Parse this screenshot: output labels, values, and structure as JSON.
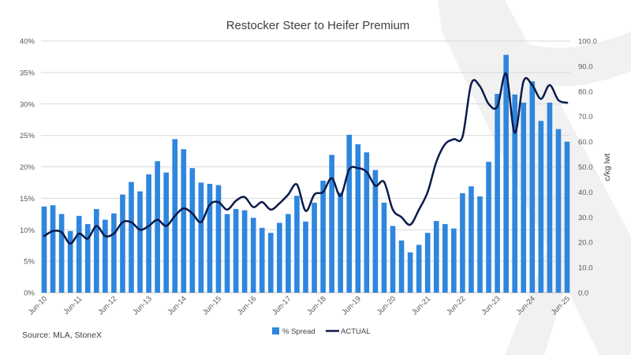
{
  "chart_data": {
    "type": "bar",
    "title": "Restocker Steer to Heifer Premium",
    "source": "Source:  MLA, StoneX",
    "y_left": {
      "ticks": [
        "0%",
        "5%",
        "10%",
        "15%",
        "20%",
        "25%",
        "30%",
        "35%",
        "40%"
      ],
      "range": [
        0,
        40
      ]
    },
    "y_right": {
      "label": "c/kg lwt",
      "ticks": [
        "0.0",
        "10.0",
        "20.0",
        "30.0",
        "40.0",
        "50.0",
        "60.0",
        "70.0",
        "80.0",
        "90.0",
        "100.0"
      ],
      "range": [
        0,
        100
      ]
    },
    "x_ticks": [
      "Jun-10",
      "Jun-11",
      "Jun-12",
      "Jun-13",
      "Jun-14",
      "Jun-15",
      "Jun-16",
      "Jun-17",
      "Jun-18",
      "Jun-19",
      "Jun-20",
      "Jun-21",
      "Jun-22",
      "Jun-23",
      "Jun-24",
      "Jun-25"
    ],
    "period_count": 60,
    "legend": [
      "% Spread",
      "ACTUAL"
    ],
    "series": [
      {
        "name": "% Spread",
        "type": "bar",
        "axis": "left",
        "color": "#2E86DE",
        "values": [
          13.7,
          13.9,
          12.5,
          9.8,
          12.2,
          10.9,
          13.3,
          11.6,
          12.6,
          15.6,
          17.6,
          16.1,
          18.8,
          20.9,
          19.1,
          24.4,
          22.8,
          19.8,
          17.5,
          17.3,
          17.1,
          12.5,
          13.3,
          13.1,
          11.9,
          10.3,
          9.5,
          11.1,
          12.5,
          15.4,
          11.3,
          14.3,
          17.8,
          21.9,
          15.9,
          25.1,
          23.6,
          22.3,
          19.5,
          14.3,
          10.6,
          8.3,
          6.4,
          7.6,
          9.5,
          11.4,
          10.9,
          10.2,
          15.8,
          16.9,
          15.3,
          20.8,
          31.6,
          37.8,
          31.5,
          30.2,
          33.6,
          27.3,
          30.2,
          26.0,
          24.0
        ]
      },
      {
        "name": "ACTUAL",
        "type": "line",
        "axis": "right",
        "color": "#0B1A4A",
        "values": [
          22.5,
          24.5,
          24.0,
          19.5,
          23.5,
          21.5,
          26.5,
          22.5,
          23.5,
          28.0,
          28.0,
          25.0,
          26.5,
          29.0,
          26.5,
          30.5,
          33.5,
          31.5,
          28.0,
          35.0,
          36.0,
          33.0,
          36.5,
          38.0,
          34.0,
          36.0,
          33.0,
          35.5,
          39.0,
          43.0,
          32.5,
          39.0,
          40.0,
          45.5,
          38.5,
          49.0,
          49.5,
          48.0,
          42.5,
          44.0,
          33.0,
          30.0,
          27.0,
          33.0,
          40.0,
          52.0,
          59.0,
          61.0,
          62.0,
          83.0,
          82.0,
          75.0,
          74.0,
          87.0,
          63.5,
          84.0,
          82.5,
          77.0,
          82.5,
          76.5,
          75.5
        ]
      }
    ],
    "grid": true
  }
}
